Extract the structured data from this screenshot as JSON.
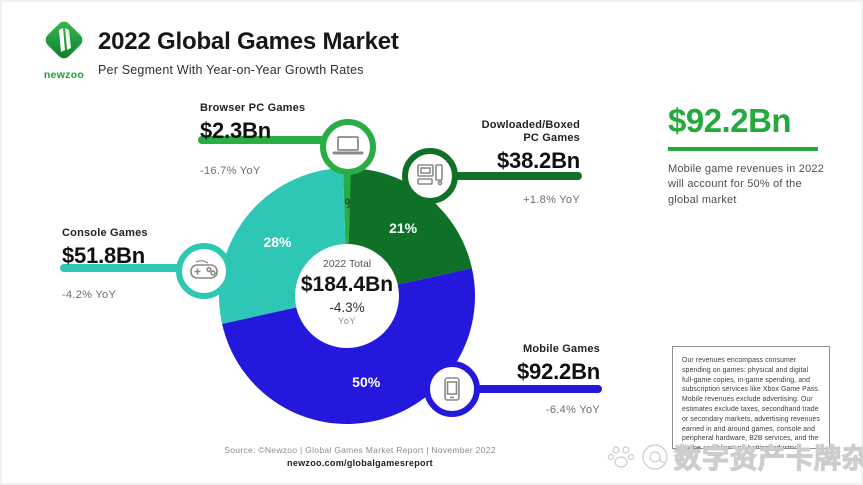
{
  "header": {
    "logo_text": "newzoo",
    "title": "2022 Global Games Market",
    "subtitle": "Per Segment With Year-on-Year Growth Rates"
  },
  "chart_data": {
    "type": "pie",
    "donut": true,
    "title": "2022 Global Games Market Per Segment With Year-on-Year Growth Rates",
    "start_angle_deg": -1.8,
    "total_value_bn": 184.4,
    "center": {
      "line1": "2022 Total",
      "value": "$184.4Bn",
      "growth": "-4.3%",
      "growth_unit": "YoY"
    },
    "segments": [
      {
        "label": "Browser PC Games",
        "value_bn": 2.3,
        "value_label": "$2.3Bn",
        "share_pct": 1,
        "pct_label": "1%",
        "yoy": "-16.7% YoY",
        "color": "#2aad45",
        "pct_label_color": "#0a4a40"
      },
      {
        "label": "Dowloaded/Boxed PC Games",
        "label_line1": "Dowloaded/Boxed",
        "label_line2": "PC Games",
        "value_bn": 38.2,
        "value_label": "$38.2Bn",
        "share_pct": 21,
        "pct_label": "21%",
        "yoy": "+1.8% YoY",
        "color": "#0f7028",
        "pct_label_color": "#ffffff"
      },
      {
        "label": "Mobile Games",
        "value_bn": 92.2,
        "value_label": "$92.2Bn",
        "share_pct": 50,
        "pct_label": "50%",
        "yoy": "-6.4% YoY",
        "color": "#2418dc",
        "pct_label_color": "#ffffff"
      },
      {
        "label": "Console Games",
        "value_bn": 51.8,
        "value_label": "$51.8Bn",
        "share_pct": 28,
        "pct_label": "28%",
        "yoy": "-4.2% YoY",
        "color": "#2ec7b5",
        "pct_label_color": "#ffffff"
      }
    ]
  },
  "highlight": {
    "value": "$92.2Bn",
    "color": "#23a93c",
    "description": "Mobile game revenues in 2022 will account for 50% of the global market"
  },
  "disclaimer": "Our revenues encompass consumer spending on games: physical and digital full-game copies, in-game spending, and subscription services like Xbox Game Pass. Mobile revenues exclude advertising. Our estimates exclude taxes, secondhand trade or secondary markets, advertising revenues earned in and around games, console and peripheral hardware, B2B services, and the online gambling and betting industry.",
  "footer": {
    "source": "Source: ©Newzoo | Global Games Market Report | November 2022",
    "url": "newzoo.com/globalgamesreport"
  },
  "watermark": {
    "text": "数字资产卡牌杂谈"
  }
}
